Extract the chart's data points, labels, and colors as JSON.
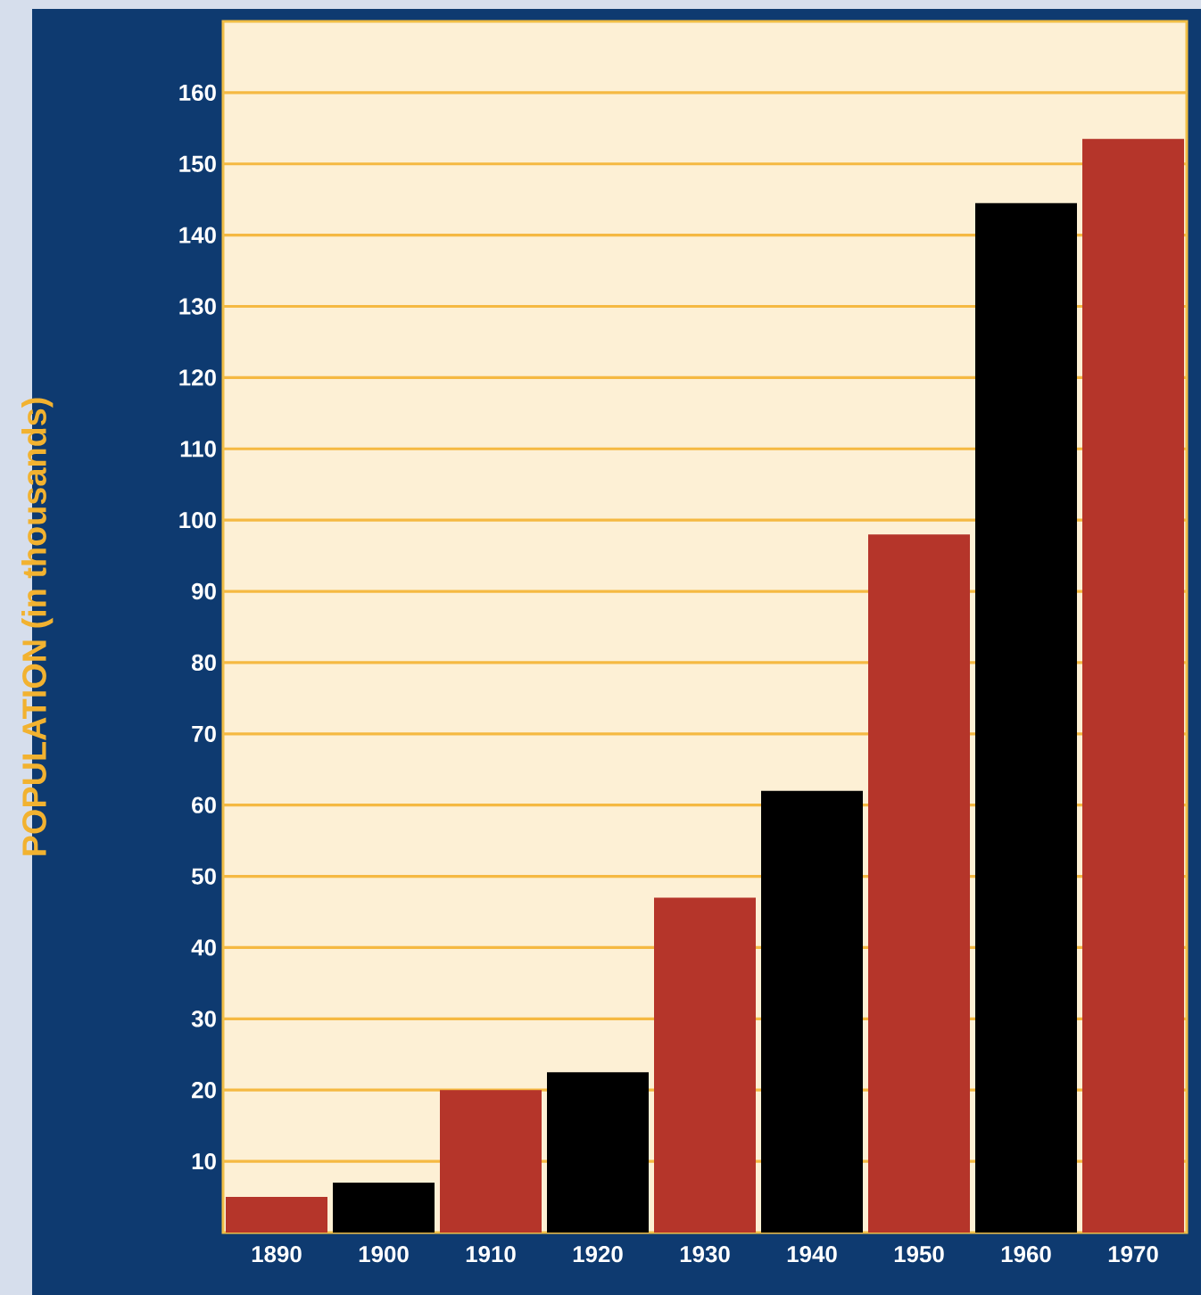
{
  "chart_data": {
    "type": "bar",
    "ylabel": "POPULATION (in thousands)",
    "categories": [
      "1890",
      "1900",
      "1910",
      "1920",
      "1930",
      "1940",
      "1950",
      "1960",
      "1970"
    ],
    "values": [
      5,
      7,
      20,
      22.5,
      47,
      62,
      98,
      144.5,
      153.5
    ],
    "colors": [
      "#b5352a",
      "#000000",
      "#b5352a",
      "#000000",
      "#b5352a",
      "#000000",
      "#b5352a",
      "#000000",
      "#b5352a"
    ],
    "ylim": [
      0,
      170
    ],
    "yticks": [
      10,
      20,
      30,
      40,
      50,
      60,
      70,
      80,
      90,
      100,
      110,
      120,
      130,
      140,
      150,
      160
    ],
    "grid": "y"
  }
}
